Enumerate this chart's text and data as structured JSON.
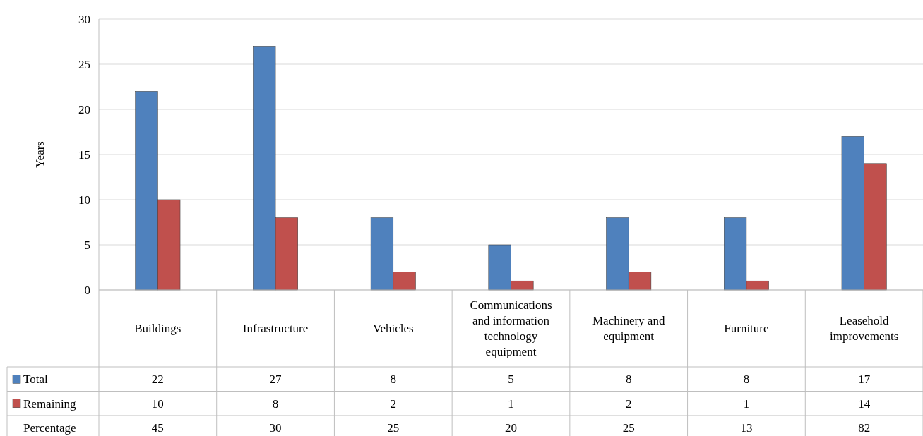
{
  "chart_data": {
    "type": "bar",
    "ylabel": "Years",
    "categories": [
      "Buildings",
      "Infrastructure",
      "Vehicles",
      "Communications and information technology equipment",
      "Machinery and equipment",
      "Furniture",
      "Leasehold improvements"
    ],
    "series": [
      {
        "name": "Total",
        "color": "#4f81bd",
        "values": [
          22,
          27,
          8,
          5,
          8,
          8,
          17
        ]
      },
      {
        "name": "Remaining",
        "color": "#c0504d",
        "values": [
          10,
          8,
          2,
          1,
          2,
          1,
          14
        ]
      }
    ],
    "ylim": [
      0,
      30
    ],
    "yticks": [
      0,
      5,
      10,
      15,
      20,
      25,
      30
    ],
    "grid": "y",
    "legend": "bottom",
    "data_labels": true,
    "annotations": [
      "Percentage",
      "45",
      "30",
      "25",
      "20",
      "25",
      "13",
      "82"
    ]
  }
}
